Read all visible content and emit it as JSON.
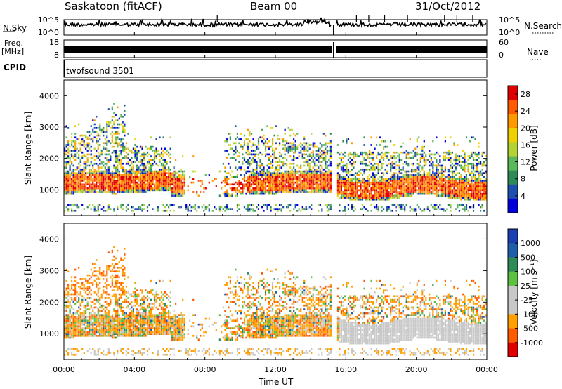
{
  "header": {
    "station": "Saskatoon (fitACF)",
    "beam": "Beam 00",
    "date": "31/Oct/2012"
  },
  "left_labels": {
    "nsky": "N.Sky",
    "freq": "Freq.",
    "freq_unit": "[MHz]",
    "cpid": "CPID"
  },
  "right_labels": {
    "nsearch": "N.Search",
    "nave": "Nave"
  },
  "cpid_value": "twofsound 3501",
  "colors": {
    "power": [
      "#0000dd",
      "#1d4fb0",
      "#2e8b57",
      "#5cb85c",
      "#b2d235",
      "#f0d000",
      "#ff9900",
      "#ff5a00",
      "#e00000"
    ],
    "velocity": [
      "#e00000",
      "#ff5a00",
      "#ff9f00",
      "#c8c8c8",
      "#c8c8c8",
      "#5cc040",
      "#2e8b57",
      "#1f5faa",
      "#1a3fb0"
    ]
  },
  "chart_data": [
    {
      "type": "line",
      "name": "sky-noise",
      "x_range": [
        0,
        24
      ],
      "y_ticks_left": [
        "10^5",
        "10^0"
      ],
      "y_ticks_right": [
        "10^5",
        "10^0"
      ],
      "gap_hours": [
        15.2,
        15.45
      ]
    },
    {
      "type": "line",
      "name": "frequency",
      "x_range": [
        0,
        24
      ],
      "y_ticks_left": [
        "18",
        "8"
      ],
      "y_ticks_right": [
        "60",
        "0"
      ]
    },
    {
      "type": "heatmap",
      "name": "power",
      "x_range": [
        0,
        24
      ],
      "y_range": [
        180,
        4500
      ],
      "ylabel": "Slant Range [km]",
      "y_ticks": [
        "1000",
        "2000",
        "3000",
        "4000"
      ],
      "colorbar_label": "Power [dB]",
      "colorbar_ticks": [
        "4",
        "8",
        "12",
        "16",
        "20",
        "24",
        "28"
      ],
      "colorbar_range": [
        0,
        30
      ]
    },
    {
      "type": "heatmap",
      "name": "velocity",
      "x_range": [
        0,
        24
      ],
      "y_range": [
        180,
        4500
      ],
      "ylabel": "Slant Range [km]",
      "y_ticks": [
        "1000",
        "2000",
        "3000",
        "4000"
      ],
      "colorbar_label": "Velocity [m s⁻¹]",
      "colorbar_ticks": [
        "1000",
        "500",
        "100",
        "25",
        "-25",
        "-100",
        "-500",
        "-1000"
      ]
    }
  ],
  "x_axis": {
    "label": "Time UT",
    "ticks": [
      "00:00",
      "04:00",
      "08:00",
      "12:00",
      "16:00",
      "20:00",
      "00:00"
    ]
  }
}
